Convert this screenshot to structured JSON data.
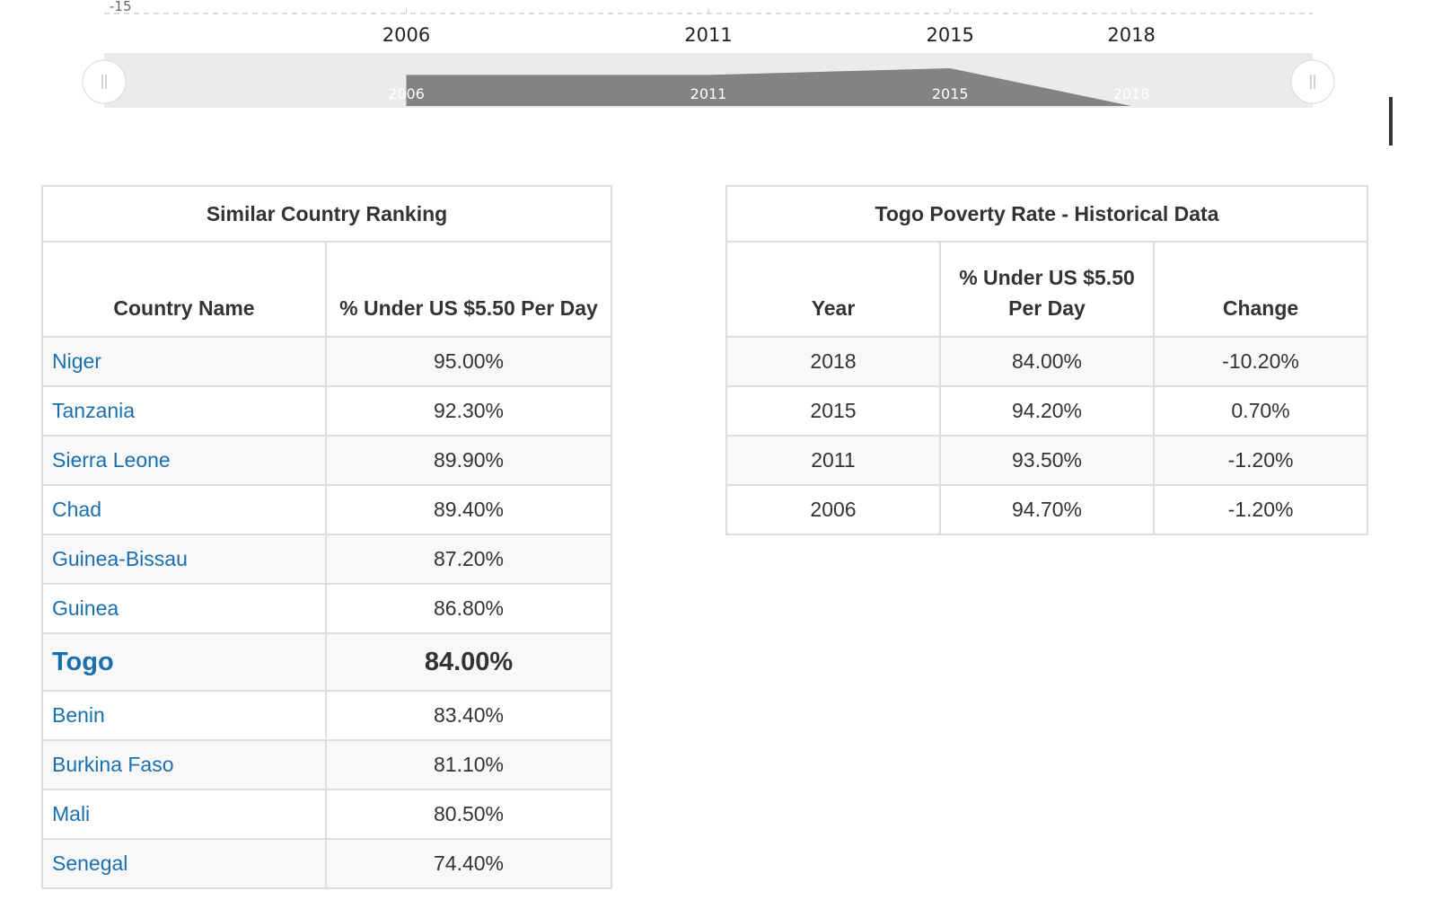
{
  "chart_data": {
    "type": "area",
    "x": [
      2006,
      2011,
      2015,
      2018
    ],
    "values": [
      -1.2,
      -1.2,
      0.7,
      -10.2
    ],
    "y_tick_visible": "-15",
    "x_tick_labels": [
      "2006",
      "2011",
      "2015",
      "2018"
    ],
    "navigator_labels": [
      "2006",
      "2011",
      "2015",
      "2018"
    ],
    "grid": "dashed horizontal",
    "colors": {
      "navigator_fill": "#838383",
      "navigator_bg": "#ebebeb",
      "handle": "#ffffff"
    }
  },
  "ranking": {
    "title": "Similar Country Ranking",
    "col_country": "Country Name",
    "col_rate": "% Under US $5.50 Per Day",
    "rows": [
      {
        "country": "Niger",
        "rate": "95.00%"
      },
      {
        "country": "Tanzania",
        "rate": "92.30%"
      },
      {
        "country": "Sierra Leone",
        "rate": "89.90%"
      },
      {
        "country": "Chad",
        "rate": "89.40%"
      },
      {
        "country": "Guinea-Bissau",
        "rate": "87.20%"
      },
      {
        "country": "Guinea",
        "rate": "86.80%"
      },
      {
        "country": "Togo",
        "rate": "84.00%",
        "highlight": true
      },
      {
        "country": "Benin",
        "rate": "83.40%"
      },
      {
        "country": "Burkina Faso",
        "rate": "81.10%"
      },
      {
        "country": "Mali",
        "rate": "80.50%"
      },
      {
        "country": "Senegal",
        "rate": "74.40%"
      }
    ]
  },
  "history": {
    "title": "Togo Poverty Rate - Historical Data",
    "col_year": "Year",
    "col_rate": "% Under US $5.50 Per Day",
    "col_change": "Change",
    "rows": [
      {
        "year": "2018",
        "rate": "84.00%",
        "change": "-10.20%"
      },
      {
        "year": "2015",
        "rate": "94.20%",
        "change": "0.70%"
      },
      {
        "year": "2011",
        "rate": "93.50%",
        "change": "-1.20%"
      },
      {
        "year": "2006",
        "rate": "94.70%",
        "change": "-1.20%"
      }
    ]
  },
  "colors": {
    "link": "#1a6faf",
    "border": "#dedede",
    "stripe": "#f8f8f8",
    "text": "#333333"
  }
}
